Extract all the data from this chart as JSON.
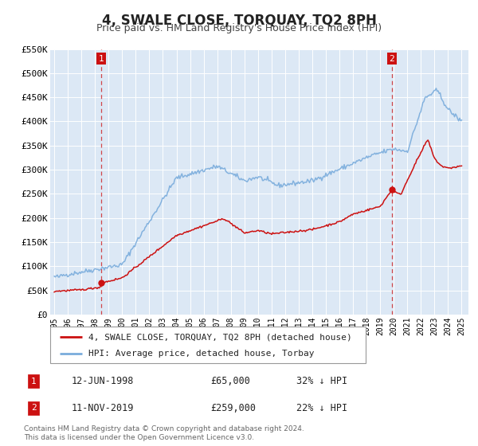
{
  "title": "4, SWALE CLOSE, TORQUAY, TQ2 8PH",
  "subtitle": "Price paid vs. HM Land Registry's House Price Index (HPI)",
  "title_fontsize": 12,
  "subtitle_fontsize": 9,
  "background_color": "#ffffff",
  "plot_bg_color": "#dce8f5",
  "grid_color": "#ffffff",
  "hpi_color": "#7aacdc",
  "price_color": "#cc1111",
  "marker_color": "#cc1111",
  "ylim": [
    0,
    550000
  ],
  "yticks": [
    0,
    50000,
    100000,
    150000,
    200000,
    250000,
    300000,
    350000,
    400000,
    450000,
    500000,
    550000
  ],
  "ytick_labels": [
    "£0",
    "£50K",
    "£100K",
    "£150K",
    "£200K",
    "£250K",
    "£300K",
    "£350K",
    "£400K",
    "£450K",
    "£500K",
    "£550K"
  ],
  "xlim_start": 1994.7,
  "xlim_end": 2025.5,
  "xticks": [
    1995,
    1996,
    1997,
    1998,
    1999,
    2000,
    2001,
    2002,
    2003,
    2004,
    2005,
    2006,
    2007,
    2008,
    2009,
    2010,
    2011,
    2012,
    2013,
    2014,
    2015,
    2016,
    2017,
    2018,
    2019,
    2020,
    2021,
    2022,
    2023,
    2024,
    2025
  ],
  "sale1_x": 1998.45,
  "sale1_y": 65000,
  "sale1_label": "1",
  "sale1_date": "12-JUN-1998",
  "sale1_price": "£65,000",
  "sale1_hpi": "32% ↓ HPI",
  "sale2_x": 2019.86,
  "sale2_y": 259000,
  "sale2_label": "2",
  "sale2_date": "11-NOV-2019",
  "sale2_price": "£259,000",
  "sale2_hpi": "22% ↓ HPI",
  "legend_label_price": "4, SWALE CLOSE, TORQUAY, TQ2 8PH (detached house)",
  "legend_label_hpi": "HPI: Average price, detached house, Torbay",
  "footer_line1": "Contains HM Land Registry data © Crown copyright and database right 2024.",
  "footer_line2": "This data is licensed under the Open Government Licence v3.0.",
  "annotation_box_color": "#cc1111"
}
